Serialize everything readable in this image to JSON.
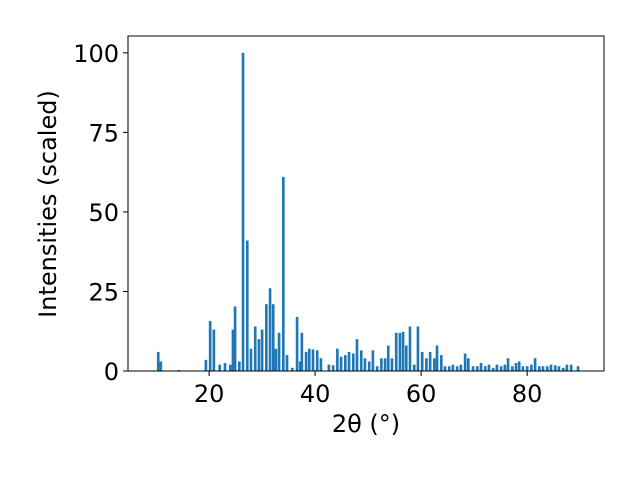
{
  "chart_data": {
    "type": "bar",
    "x_label": "2θ (°)",
    "y_label": "Intensities (scaled)",
    "color": "#1f77b4",
    "x": [
      10.4,
      10.9,
      14.3,
      19.4,
      20.2,
      20.9,
      22,
      23,
      24,
      24.5,
      24.9,
      25.7,
      26.4,
      27.2,
      27.9,
      28.7,
      29.4,
      30,
      30.8,
      31.5,
      32.1,
      32.6,
      33.2,
      34,
      34.7,
      35.7,
      36.6,
      37.2,
      37.5,
      38.3,
      38.9,
      39.6,
      40.4,
      41.1,
      42.6,
      43.4,
      44.2,
      44.9,
      45.7,
      46.4,
      47.2,
      47.9,
      48.7,
      49.4,
      50.2,
      50.9,
      51.7,
      52.5,
      53.2,
      53.8,
      54.5,
      55.3,
      56,
      56.6,
      57.2,
      57.9,
      58.7,
      59.4,
      60.2,
      61,
      61.7,
      62.5,
      63,
      63.8,
      64.5,
      65.3,
      66,
      66.8,
      67.5,
      68.3,
      68.9,
      69.8,
      70.6,
      71.3,
      72.1,
      72.8,
      73.6,
      74.3,
      75.1,
      75.8,
      76.4,
      77.2,
      77.9,
      78.5,
      79.2,
      80,
      80.8,
      81.5,
      82.3,
      83,
      83.8,
      84.5,
      85.3,
      86,
      86.8,
      87.5,
      88.3,
      89.6
    ],
    "values": [
      6,
      3,
      0.3,
      3.5,
      15.7,
      13,
      2,
      2.5,
      2,
      13,
      20.3,
      3,
      100,
      41,
      7,
      14,
      10,
      13,
      21,
      26,
      21,
      7,
      12,
      61,
      5,
      1,
      17,
      3,
      12,
      6,
      7,
      6.8,
      6.5,
      4,
      2,
      1.8,
      7,
      4.5,
      5,
      6,
      5.5,
      10,
      6.5,
      4,
      3,
      6.5,
      1.5,
      4,
      4,
      8,
      4,
      12,
      12,
      12.3,
      8,
      14,
      2,
      14,
      6,
      4,
      6,
      4,
      8,
      5,
      1.5,
      1.5,
      2,
      1.5,
      2,
      5.5,
      4,
      1.5,
      1.5,
      2.5,
      1.5,
      2,
      1,
      2,
      1.5,
      2,
      4,
      1.5,
      2.5,
      3,
      1.5,
      1.5,
      2,
      4,
      1.5,
      1.5,
      1.5,
      2,
      1.8,
      1.5,
      1,
      2,
      2,
      1.5
    ],
    "xlim": [
      4.7,
      94.5
    ],
    "ylim": [
      0,
      105.3
    ],
    "xticks": [
      20,
      40,
      60,
      80
    ],
    "yticks": [
      0,
      25,
      50,
      75,
      100
    ]
  }
}
